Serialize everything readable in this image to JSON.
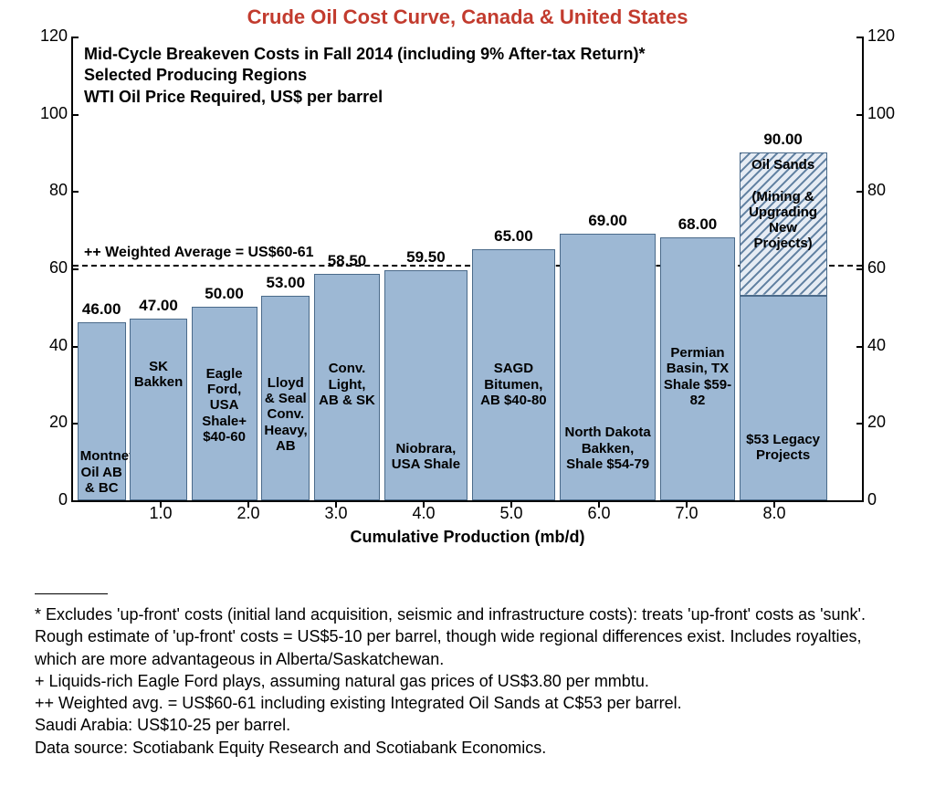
{
  "title": {
    "text": "Crude Oil Cost Curve, Canada & United States",
    "color": "#c23b2e"
  },
  "chart": {
    "type": "bar",
    "bar_color": "#9db8d4",
    "bar_border": "#4a6a8a",
    "hatch_bg": "#e6ecf4",
    "hatch_stroke": "#5f7fa0",
    "background": "#ffffff",
    "ylim": [
      0,
      120
    ],
    "ytick_step": 20,
    "yticks": [
      0,
      20,
      40,
      60,
      80,
      100,
      120
    ],
    "xlim": [
      0,
      9
    ],
    "xticks": [
      1.0,
      2.0,
      3.0,
      4.0,
      5.0,
      6.0,
      7.0,
      8.0
    ],
    "xlabel": "Cumulative Production (mb/d)",
    "header_lines": [
      "Mid-Cycle Breakeven Costs in Fall 2014 (including 9% After-tax Return)*",
      "Selected Producing Regions",
      "WTI Oil Price Required, US$ per barrel"
    ],
    "weighted_avg": {
      "value": 61,
      "label": "++ Weighted Average = US$60-61"
    },
    "bars": [
      {
        "x0": 0.05,
        "x1": 0.6,
        "value": 46.0,
        "label": "46.00",
        "text": "Montney Oil AB & BC",
        "text_bottom": 4
      },
      {
        "x0": 0.65,
        "x1": 1.3,
        "value": 47.0,
        "label": "47.00",
        "text": "SK Bakken",
        "text_bottom": 120
      },
      {
        "x0": 1.35,
        "x1": 2.1,
        "value": 50.0,
        "label": "50.00",
        "text": "Eagle Ford, USA Shale+ $40-60",
        "text_bottom": 60
      },
      {
        "x0": 2.15,
        "x1": 2.7,
        "value": 53.0,
        "label": "53.00",
        "text": "Lloyd & Seal Conv. Heavy, AB",
        "text_bottom": 50
      },
      {
        "x0": 2.75,
        "x1": 3.5,
        "value": 58.5,
        "label": "58.50",
        "text": "Conv. Light, AB & SK",
        "text_bottom": 100
      },
      {
        "x0": 3.55,
        "x1": 4.5,
        "value": 59.5,
        "label": "59.50",
        "text": "Niobrara, USA Shale",
        "text_bottom": 30
      },
      {
        "x0": 4.55,
        "x1": 5.5,
        "value": 65.0,
        "label": "65.00",
        "text": "SAGD Bitumen, AB $40-80",
        "text_bottom": 100
      },
      {
        "x0": 5.55,
        "x1": 6.65,
        "value": 69.0,
        "label": "69.00",
        "text": "North Dakota Bakken, Shale $54-79",
        "text_bottom": 30
      },
      {
        "x0": 6.7,
        "x1": 7.55,
        "value": 68.0,
        "label": "68.00",
        "text": "Permian Basin, TX Shale $59-82",
        "text_bottom": 100
      },
      {
        "x0": 7.6,
        "x1": 8.6,
        "value": 53.0,
        "top_value": 90.0,
        "label": "90.00",
        "text": "$53 Legacy Projects",
        "text_bottom": 40,
        "top_text": "Oil Sands\n\n(Mining & Upgrading New Projects)"
      }
    ]
  },
  "footnotes": [
    "* Excludes 'up-front' costs (initial land acquisition, seismic and infrastructure costs): treats 'up-front' costs as 'sunk'. Rough estimate of 'up-front' costs = US$5-10 per barrel, though wide regional differences exist. Includes royalties, which are more advantageous in Alberta/Saskatchewan.",
    "+ Liquids-rich Eagle Ford plays, assuming natural gas prices of US$3.80 per mmbtu.",
    "++ Weighted avg. = US$60-61 including existing Integrated Oil Sands at C$53 per barrel.",
    "Saudi Arabia: US$10-25 per barrel.",
    "Data source: Scotiabank Equity Research and Scotiabank Economics."
  ]
}
